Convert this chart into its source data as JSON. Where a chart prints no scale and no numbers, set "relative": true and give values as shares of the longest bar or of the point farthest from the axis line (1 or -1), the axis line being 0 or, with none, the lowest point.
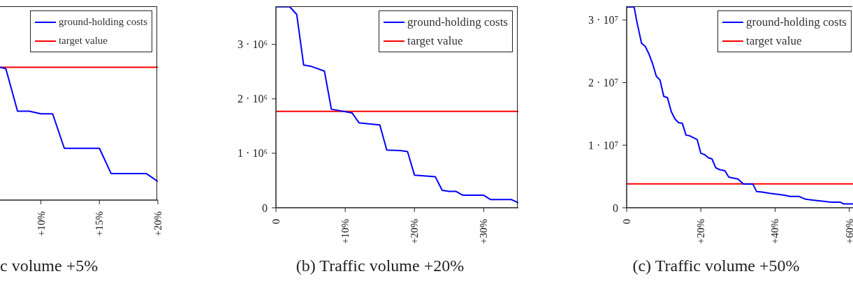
{
  "chart_data": [
    {
      "type": "line",
      "title": "c volume +5%",
      "relative": true,
      "xlim": [
        6.5,
        20
      ],
      "xticks": [
        {
          "value": 10,
          "label": "+10%"
        },
        {
          "value": 15,
          "label": "+15%"
        },
        {
          "value": 20,
          "label": "+20%"
        }
      ],
      "tick_labels": "x",
      "legend": "top right",
      "marker": "none",
      "line_style": "solid",
      "series": [
        {
          "name": "ground-holding costs",
          "color": "#0000ff",
          "x": [
            6.5,
            7,
            8,
            9,
            10,
            11,
            12,
            15,
            16,
            19,
            20
          ],
          "values": [
            1,
            0.99,
            0.67,
            0.67,
            0.65,
            0.65,
            0.39,
            0.39,
            0.2,
            0.2,
            0.14
          ]
        }
      ],
      "ref_lines": [
        {
          "axis": "y",
          "value": 1,
          "label": "target value",
          "color": "#ff0000"
        }
      ]
    },
    {
      "type": "line",
      "title": "(b) Traffic volume +20%",
      "xlim": [
        0,
        35
      ],
      "ylim": [
        0,
        3700000
      ],
      "xticks": [
        0,
        {
          "value": 10,
          "label": "+10%"
        },
        {
          "value": 20,
          "label": "+20%"
        },
        {
          "value": 30,
          "label": "+30%"
        }
      ],
      "yticks": [
        0,
        {
          "value": 1000000,
          "label": "1 · 10⁶"
        },
        {
          "value": 2000000,
          "label": "2 · 10⁶"
        },
        {
          "value": 3000000,
          "label": "3 · 10⁶"
        }
      ],
      "legend": "top right",
      "marker": "none",
      "line_style": "solid",
      "series": [
        {
          "name": "ground-holding costs",
          "color": "#0000ff",
          "x": [
            0,
            2,
            3,
            4,
            5,
            7,
            8,
            11,
            12,
            15,
            16,
            18,
            19,
            20,
            22,
            23,
            24,
            25,
            26,
            27,
            30,
            31,
            34,
            35
          ],
          "values": [
            3690000,
            3690000,
            3550000,
            2620000,
            2600000,
            2510000,
            1810000,
            1740000,
            1560000,
            1520000,
            1060000,
            1050000,
            1030000,
            600000,
            580000,
            570000,
            320000,
            300000,
            300000,
            230000,
            230000,
            150000,
            150000,
            90000
          ]
        }
      ],
      "ref_lines": [
        {
          "axis": "y",
          "value": 1770000,
          "label": "target value",
          "color": "#ff0000"
        }
      ]
    },
    {
      "type": "line",
      "title": "(c) Traffic volume +50%",
      "xlim": [
        0,
        61
      ],
      "ylim": [
        0,
        32200000
      ],
      "xticks": [
        0,
        {
          "value": 20,
          "label": "+20%"
        },
        {
          "value": 40,
          "label": "+40%"
        },
        {
          "value": 60,
          "label": "+60%"
        }
      ],
      "yticks": [
        0,
        {
          "value": 10000000,
          "label": "1 · 10⁷"
        },
        {
          "value": 20000000,
          "label": "2 · 10⁷"
        },
        {
          "value": 30000000,
          "label": "3 · 10⁷"
        }
      ],
      "legend": "top right",
      "marker": "none",
      "line_style": "solid",
      "series": [
        {
          "name": "ground-holding costs",
          "color": "#0000ff",
          "x": [
            0,
            2,
            2.7,
            4,
            5,
            6,
            7,
            8,
            9,
            10,
            11,
            12,
            13,
            14,
            15,
            16,
            17,
            19,
            20,
            21,
            22,
            23,
            24,
            25,
            26.5,
            27.5,
            29,
            30,
            31.5,
            34,
            35,
            36.5,
            38.5,
            40,
            42.5,
            44,
            46.5,
            48,
            49,
            50.5,
            53.5,
            55,
            57.5,
            58.5,
            61
          ],
          "values": [
            32100000,
            32100000,
            29900000,
            26300000,
            25800000,
            24600000,
            23000000,
            21000000,
            20400000,
            17800000,
            17600000,
            15400000,
            14200000,
            13600000,
            13500000,
            11600000,
            11500000,
            10900000,
            8700000,
            8500000,
            8000000,
            7800000,
            6400000,
            6100000,
            5900000,
            4900000,
            4700000,
            4600000,
            3800000,
            3800000,
            2600000,
            2500000,
            2300000,
            2200000,
            2000000,
            1800000,
            1800000,
            1400000,
            1300000,
            1200000,
            1000000,
            900000,
            900000,
            600000,
            600000
          ]
        }
      ],
      "ref_lines": [
        {
          "axis": "y",
          "value": 3830000,
          "label": "target value",
          "color": "#ff0000"
        }
      ]
    }
  ]
}
